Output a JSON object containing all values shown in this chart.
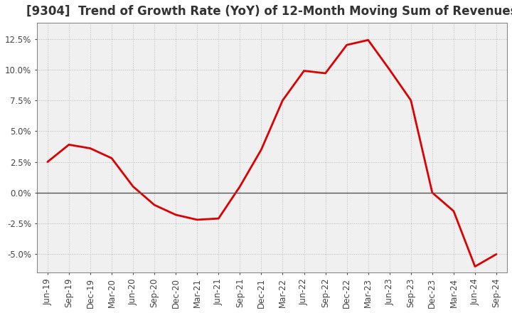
{
  "title": "[9304]  Trend of Growth Rate (YoY) of 12-Month Moving Sum of Revenues",
  "x_labels": [
    "Jun-19",
    "Sep-19",
    "Dec-19",
    "Mar-20",
    "Jun-20",
    "Sep-20",
    "Dec-20",
    "Mar-21",
    "Jun-21",
    "Sep-21",
    "Dec-21",
    "Mar-22",
    "Jun-22",
    "Sep-22",
    "Dec-22",
    "Mar-23",
    "Jun-23",
    "Sep-23",
    "Dec-23",
    "Mar-24",
    "Jun-24",
    "Sep-24"
  ],
  "y_values": [
    2.5,
    3.9,
    3.6,
    2.8,
    0.5,
    -1.0,
    -1.8,
    -2.2,
    -2.1,
    0.5,
    3.5,
    7.5,
    9.9,
    9.7,
    12.0,
    12.4,
    10.0,
    7.5,
    0.0,
    -1.5,
    -6.0,
    -5.0
  ],
  "line_color": "#dd0000",
  "line_width": 2.0,
  "ylim": [
    -6.5,
    13.8
  ],
  "yticks": [
    -5.0,
    -2.5,
    0.0,
    2.5,
    5.0,
    7.5,
    10.0,
    12.5
  ],
  "background_color": "#ffffff",
  "plot_bg_color": "#f0f0f0",
  "grid_color": "#bbbbbb",
  "title_fontsize": 12,
  "zero_line_color": "#555555",
  "tick_label_color": "#444444",
  "tick_fontsize": 8.5
}
